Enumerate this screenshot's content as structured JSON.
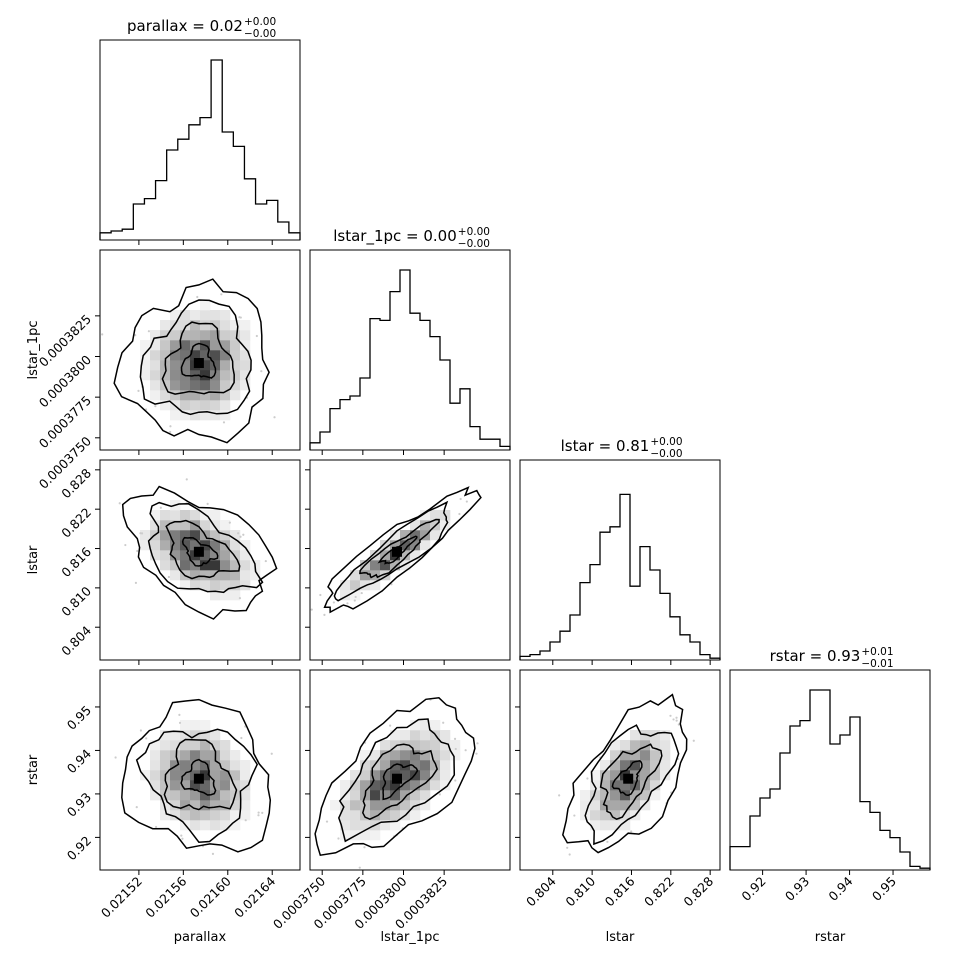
{
  "chart_data": {
    "type": "corner",
    "variables": [
      {
        "key": "parallax",
        "xlabel": "parallax",
        "ylabel": "",
        "title_prefix": "parallax = 0.02",
        "title_sup": "+0.00",
        "title_sub": "−0.00",
        "range": [
          0.021485,
          0.021665
        ],
        "ticks": [
          0.02152,
          0.02156,
          0.0216,
          0.02164
        ],
        "tick_labels": [
          "0.02152",
          "0.02156",
          "0.02160",
          "0.02164"
        ],
        "hist": [
          0.04,
          0.05,
          0.06,
          0.2,
          0.23,
          0.33,
          0.5,
          0.56,
          0.64,
          0.68,
          1.0,
          0.6,
          0.52,
          0.34,
          0.2,
          0.22,
          0.1,
          0.04
        ],
        "center": 0.021574,
        "sd": 2.5e-05
      },
      {
        "key": "lstar_1pc",
        "xlabel": "lstar_1pc",
        "ylabel": "lstar_1pc",
        "title_prefix": "lstar_1pc = 0.00",
        "title_sup": "+0.00",
        "title_sub": "−0.00",
        "range": [
          0.00037425,
          0.00038655
        ],
        "ticks": [
          0.000375,
          0.0003775,
          0.00038,
          0.0003825
        ],
        "tick_labels": [
          "0.0003750",
          "0.0003775",
          "0.0003800",
          "0.0003825"
        ],
        "hist": [
          0.04,
          0.1,
          0.23,
          0.28,
          0.3,
          0.4,
          0.73,
          0.72,
          0.88,
          1.0,
          0.76,
          0.72,
          0.63,
          0.5,
          0.26,
          0.34,
          0.13,
          0.06,
          0.06,
          0.02
        ],
        "center": 0.0003796,
        "sd": 1.8e-06
      },
      {
        "key": "lstar",
        "xlabel": "lstar",
        "ylabel": "lstar",
        "title_prefix": "lstar = 0.81",
        "title_sup": "+0.00",
        "title_sub": "−0.00",
        "range": [
          0.799,
          0.8295
        ],
        "ticks": [
          0.804,
          0.81,
          0.816,
          0.822,
          0.828
        ],
        "tick_labels": [
          "0.804",
          "0.810",
          "0.816",
          "0.822",
          "0.828"
        ],
        "hist": [
          0.02,
          0.03,
          0.05,
          0.1,
          0.16,
          0.25,
          0.43,
          0.53,
          0.71,
          0.74,
          0.92,
          0.41,
          0.63,
          0.5,
          0.37,
          0.24,
          0.14,
          0.1,
          0.03,
          0.01
        ],
        "center": 0.8155,
        "sd": 0.0035
      },
      {
        "key": "rstar",
        "xlabel": "rstar",
        "ylabel": "rstar",
        "title_prefix": "rstar = 0.93",
        "title_sup": "+0.01",
        "title_sub": "−0.01",
        "range": [
          0.9125,
          0.9585
        ],
        "ticks": [
          0.92,
          0.93,
          0.94,
          0.95
        ],
        "tick_labels": [
          "0.92",
          "0.93",
          "0.94",
          "0.95"
        ],
        "hist": [
          0.13,
          0.13,
          0.3,
          0.4,
          0.45,
          0.65,
          0.8,
          0.83,
          1.0,
          1.0,
          0.7,
          0.75,
          0.85,
          0.38,
          0.32,
          0.22,
          0.18,
          0.1,
          0.02,
          0.01
        ],
        "center": 0.9335,
        "sd": 0.0065
      }
    ],
    "correlations": [
      [
        1,
        0.05,
        -0.42,
        -0.12
      ],
      [
        0.05,
        1,
        0.9,
        0.55
      ],
      [
        -0.42,
        0.9,
        1,
        0.55
      ],
      [
        -0.12,
        0.55,
        0.55,
        1
      ]
    ],
    "grid": "off",
    "legend": "none"
  },
  "colors": {
    "ink": "#000000",
    "density": "#000000",
    "scatter": "#cccccc"
  }
}
